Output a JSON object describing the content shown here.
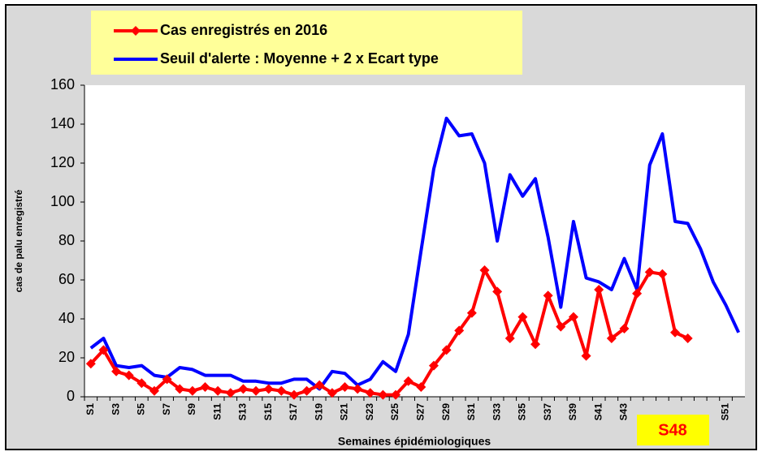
{
  "chart_data": {
    "type": "line",
    "x_label": "Semaines épidémiologiques",
    "y_label": "cas de palu enregistré",
    "annotation": "S48",
    "legend": "top-left",
    "categories": [
      "S1",
      null,
      "S3",
      null,
      "S5",
      null,
      "S7",
      null,
      "S9",
      null,
      "S11",
      null,
      "S13",
      null,
      "S15",
      null,
      "S17",
      null,
      "S19",
      null,
      "S21",
      null,
      "S23",
      null,
      "S25",
      null,
      "S27",
      null,
      "S29",
      null,
      "S31",
      null,
      "S33",
      null,
      "S35",
      null,
      "S37",
      null,
      "S39",
      null,
      "S41",
      null,
      "S43",
      null,
      null,
      null,
      null,
      null,
      null,
      null,
      "S51",
      null
    ],
    "series": [
      {
        "name": "Cas enregistrés en 2016",
        "color": "#ff0000",
        "marker": "diamond",
        "values": [
          17,
          24,
          13,
          11,
          7,
          3,
          9,
          4,
          3,
          5,
          3,
          2,
          4,
          3,
          4,
          3,
          1,
          3,
          6,
          2,
          5,
          4,
          2,
          1,
          1,
          8,
          5,
          16,
          24,
          34,
          43,
          65,
          54,
          30,
          41,
          27,
          52,
          36,
          41,
          21,
          55,
          30,
          35,
          53,
          64,
          63,
          33,
          30,
          null,
          null,
          null,
          null
        ]
      },
      {
        "name": "Seuil d'alerte : Moyenne + 2 x Ecart type",
        "color": "#0000ff",
        "values": [
          25,
          30,
          16,
          15,
          16,
          11,
          10,
          15,
          14,
          11,
          11,
          11,
          8,
          8,
          7,
          7,
          9,
          9,
          4,
          13,
          12,
          6,
          9,
          18,
          13,
          32,
          75,
          117,
          143,
          134,
          135,
          120,
          80,
          114,
          103,
          112,
          82,
          46,
          90,
          61,
          59,
          55,
          71,
          55,
          119,
          135,
          90,
          89,
          76,
          59,
          47,
          33
        ]
      }
    ],
    "ylim": [
      0,
      160
    ],
    "yticks": [
      0,
      20,
      40,
      60,
      80,
      100,
      120,
      140,
      160
    ],
    "grid": false
  }
}
